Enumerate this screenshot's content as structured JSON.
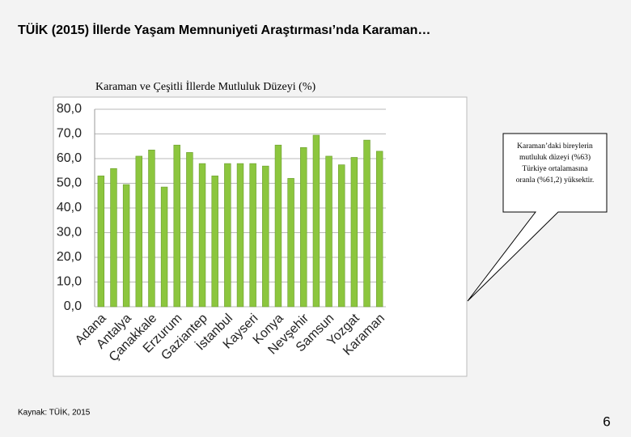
{
  "slide_title": "TÜİK (2015) İllerde Yaşam Memnuniyeti Araştırması’nda Karaman…",
  "source": "Kaynak: TÜİK, 2015",
  "page_number": "6",
  "chart_data": {
    "type": "bar",
    "title": "Karaman ve Çeşitli İllerde Mutluluk Düzeyi (%)",
    "categories": [
      "Adana",
      null,
      "Antalya",
      null,
      "Çanakkale",
      null,
      "Erzurum",
      null,
      "Gaziantep",
      null,
      "İstanbul",
      null,
      "Kayseri",
      null,
      "Konya",
      null,
      "Nevşehir",
      null,
      "Samsun",
      null,
      "Yozgat",
      null,
      "Karaman"
    ],
    "values": [
      53,
      56,
      49.5,
      61,
      63.5,
      48.5,
      65.5,
      62.5,
      58,
      53,
      58,
      58,
      58,
      57,
      65.5,
      52,
      64.5,
      69.5,
      61,
      57.5,
      60.5,
      67.5,
      63
    ],
    "color": "#8cc63e",
    "ylim": [
      0,
      80
    ],
    "yticks": [
      {
        "value": 0,
        "label": "0,0"
      },
      {
        "value": 10,
        "label": "10,0"
      },
      {
        "value": 20,
        "label": "20,0"
      },
      {
        "value": 30,
        "label": "30,0"
      },
      {
        "value": 40,
        "label": "40,0"
      },
      {
        "value": 50,
        "label": "50,0"
      },
      {
        "value": 60,
        "label": "60,0"
      },
      {
        "value": 70,
        "label": "70,0"
      },
      {
        "value": 80,
        "label": "80,0"
      }
    ],
    "grid": true,
    "annotation": [
      "Karaman’daki bireylerin",
      "mutluluk düzeyi (%63)",
      "Türkiye ortalamasına",
      "oranla (%61,2) yüksektir."
    ]
  }
}
